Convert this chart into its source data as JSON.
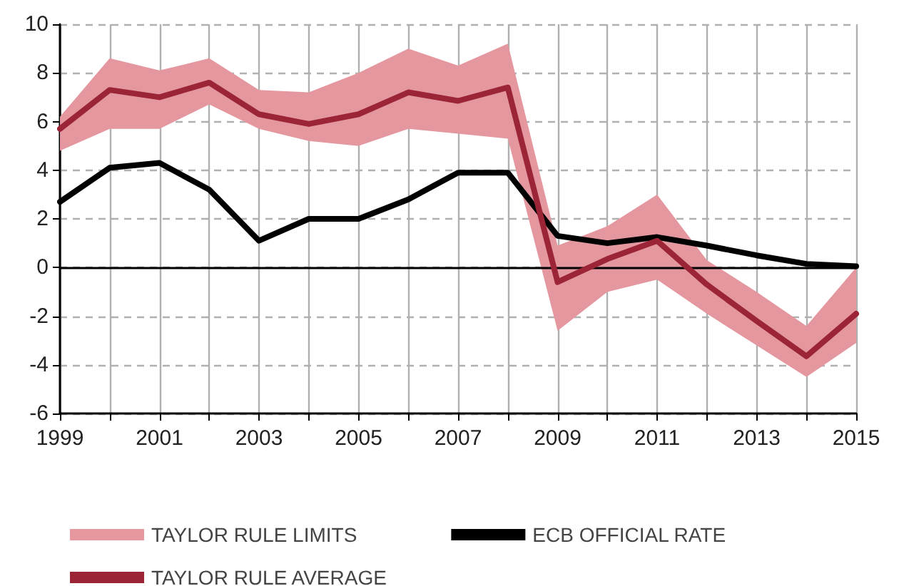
{
  "chart_data": {
    "type": "line",
    "x": [
      1999,
      2000,
      2001,
      2002,
      2003,
      2004,
      2005,
      2006,
      2007,
      2008,
      2009,
      2010,
      2011,
      2012,
      2013,
      2014,
      2015
    ],
    "series": [
      {
        "type": "area",
        "name": "TAYLOR RULE LIMITS",
        "color": "#e4979f",
        "values": [
          null,
          null,
          null,
          null,
          null,
          null,
          null,
          null,
          null,
          null,
          null,
          null,
          null,
          null,
          null,
          null,
          null
        ],
        "lower": [
          4.8,
          5.7,
          5.7,
          6.7,
          5.7,
          5.2,
          5.0,
          5.7,
          5.5,
          5.3,
          -2.6,
          -1.0,
          -0.5,
          -1.9,
          -3.2,
          -4.5,
          -3.1
        ],
        "upper": [
          6.2,
          8.6,
          8.1,
          8.6,
          7.3,
          7.2,
          8.0,
          9.0,
          8.3,
          9.2,
          0.9,
          1.7,
          3.0,
          0.3,
          -1.0,
          -2.4,
          0.0
        ]
      },
      {
        "name": "ECB OFFICIAL RATE",
        "color": "#000000",
        "values": [
          2.7,
          4.1,
          4.3,
          3.2,
          1.1,
          2.0,
          2.0,
          2.8,
          3.9,
          3.9,
          1.3,
          1.0,
          1.25,
          0.9,
          0.5,
          0.15,
          0.05
        ]
      },
      {
        "name": "TAYLOR RULE AVERAGE",
        "color": "#9b2437",
        "values": [
          5.7,
          7.3,
          7.0,
          7.6,
          6.3,
          5.9,
          6.3,
          7.2,
          6.85,
          7.4,
          -0.6,
          0.35,
          1.1,
          -0.7,
          -2.2,
          -3.65,
          -1.9
        ]
      }
    ],
    "xlim": [
      1999,
      2015
    ],
    "xticks": [
      1999,
      {
        "value": 2000,
        "label": null
      },
      2001,
      {
        "value": 2002,
        "label": null
      },
      2003,
      {
        "value": 2004,
        "label": null
      },
      2005,
      {
        "value": 2006,
        "label": null
      },
      2007,
      {
        "value": 2008,
        "label": null
      },
      2009,
      {
        "value": 2010,
        "label": null
      },
      2011,
      {
        "value": 2012,
        "label": null
      },
      2013,
      {
        "value": 2014,
        "label": null
      },
      2015
    ],
    "ylim": [
      -6,
      10
    ],
    "yticks": [
      -6,
      -4,
      -2,
      0,
      2,
      4,
      6,
      8,
      10
    ],
    "ref_lines": [
      {
        "axis": "y",
        "value": 0,
        "color": "#000000"
      }
    ],
    "grid": true,
    "legend": "bottom",
    "marker": "none",
    "line_style": "solid"
  }
}
